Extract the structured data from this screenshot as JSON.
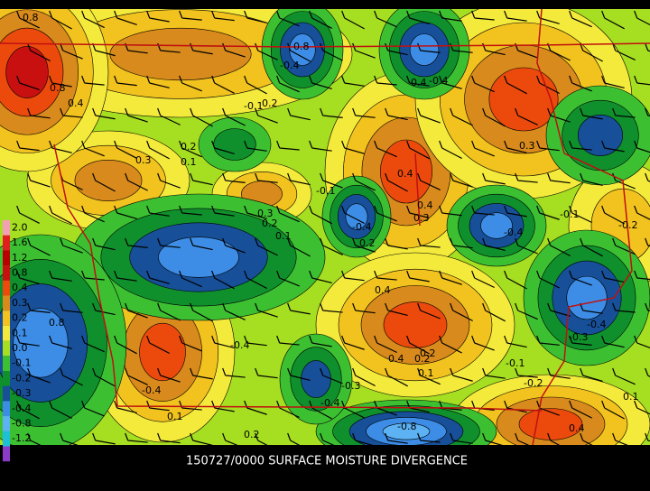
{
  "title": "150727/0000 SURFACE MOISTURE DIVERGENCE",
  "legend": {
    "levels": [
      {
        "label": "2.0",
        "color": "#f4a0b4"
      },
      {
        "label": "1.6",
        "color": "#e02020"
      },
      {
        "label": "1.2",
        "color": "#b80000"
      },
      {
        "label": "0.8",
        "color": "#c81010"
      },
      {
        "label": "0.4",
        "color": "#ec4a0c"
      },
      {
        "label": "0.3",
        "color": "#d88a1c"
      },
      {
        "label": "0.2",
        "color": "#f2c21e"
      },
      {
        "label": "0.1",
        "color": "#f4ea3c"
      },
      {
        "label": "0.0",
        "color": "#a6de22"
      },
      {
        "label": "-0.1",
        "color": "#3cc032"
      },
      {
        "label": "-0.2",
        "color": "#10902c"
      },
      {
        "label": "-0.3",
        "color": "#174f98"
      },
      {
        "label": "-0.4",
        "color": "#3d8de6"
      },
      {
        "label": "-0.8",
        "color": "#5cb2f2"
      },
      {
        "label": "-1.2",
        "color": "#1ec0d8"
      },
      {
        "label": "-1.6",
        "color": "#8a3cc8"
      }
    ]
  },
  "map": {
    "contour_labels": [
      "0.8",
      "0.8",
      "0.4",
      "-0.4",
      "0.8",
      "0.4",
      "-0.1",
      "0.2",
      "0.3",
      "0.1",
      "0.2",
      "-0.4",
      "0.4",
      "0.3",
      "0.3",
      "0.2",
      "-0.1",
      "0.4",
      "0.3",
      "-0.4",
      "0.2",
      "-0.4",
      "-0.2",
      "0.4",
      "-0.1",
      "0.1",
      "-0.4",
      "-0.3",
      "0.2",
      "0.1",
      "-0.4",
      "0.4",
      "0.2",
      "-0.1",
      "-0.4",
      "-0.2",
      "0.1",
      "-0.3",
      "-0.8",
      "-0.4",
      "0.8",
      "0.2",
      "0.1",
      "0.4"
    ]
  }
}
